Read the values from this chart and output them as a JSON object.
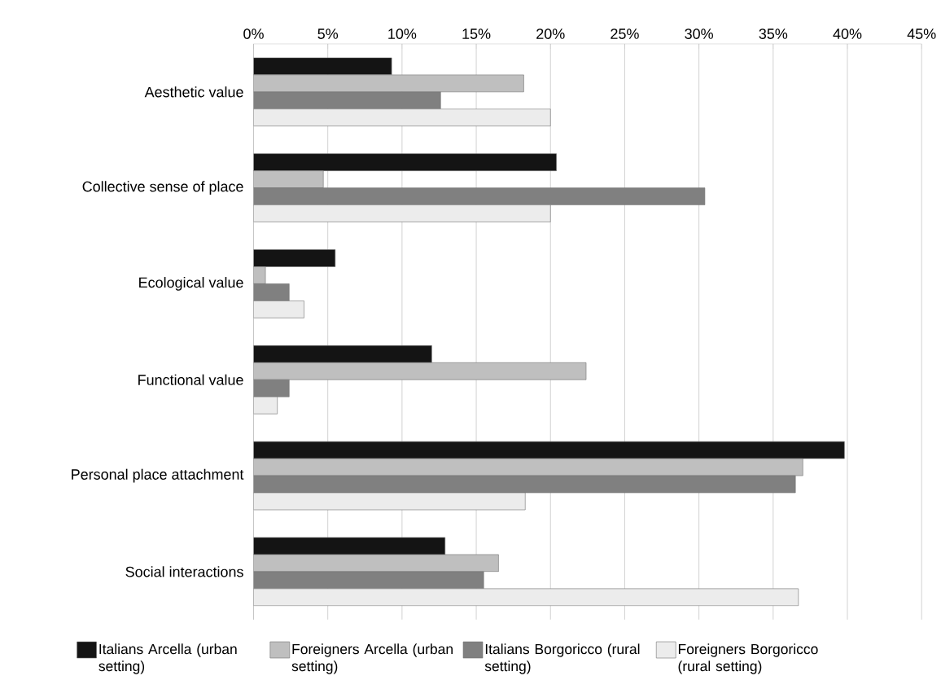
{
  "chart_data": {
    "type": "bar",
    "orientation": "horizontal",
    "categories": [
      "Aesthetic value",
      "Collective sense of place",
      "Ecological value",
      "Functional value",
      "Personal place attachment",
      "Social interactions"
    ],
    "series": [
      {
        "name": "Italians Arcella (urban setting)",
        "color": "#141414",
        "values": [
          9.3,
          20.4,
          5.5,
          12.0,
          39.8,
          12.9
        ]
      },
      {
        "name": "Foreigners Arcella (urban setting)",
        "color": "#bfbfbf",
        "values": [
          18.2,
          4.7,
          0.8,
          22.4,
          37.0,
          16.5
        ]
      },
      {
        "name": "Italians Borgoricco (rural setting)",
        "color": "#808080",
        "values": [
          12.6,
          30.4,
          2.4,
          2.4,
          36.5,
          15.5
        ]
      },
      {
        "name": "Foreigners Borgoricco (rural setting)",
        "color": "#ececec",
        "values": [
          20.0,
          20.0,
          3.4,
          1.6,
          18.3,
          36.7
        ]
      }
    ],
    "xlim": [
      0,
      45
    ],
    "xticks": [
      {
        "value": 0,
        "label": "0%"
      },
      {
        "value": 5,
        "label": "5%"
      },
      {
        "value": 10,
        "label": "10%"
      },
      {
        "value": 15,
        "label": "15%"
      },
      {
        "value": 20,
        "label": "20%"
      },
      {
        "value": 25,
        "label": "25%"
      },
      {
        "value": 30,
        "label": "30%"
      },
      {
        "value": 35,
        "label": "35%"
      },
      {
        "value": 40,
        "label": "40%"
      },
      {
        "value": 45,
        "label": "45%"
      }
    ],
    "grid": "x",
    "legend": "bottom"
  }
}
